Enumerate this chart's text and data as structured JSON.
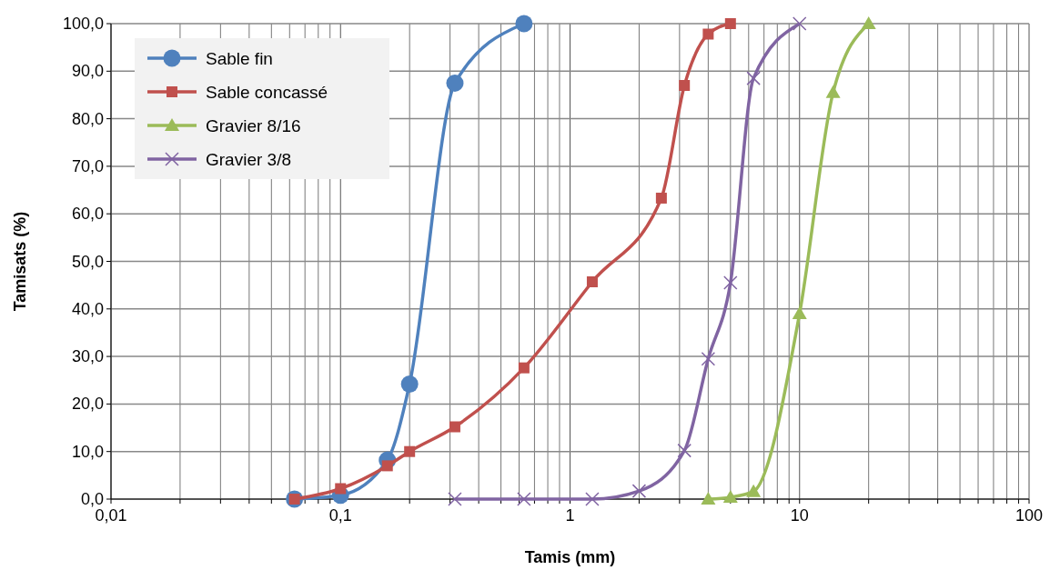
{
  "chart_data": {
    "type": "line",
    "xlabel": "Tamis (mm)",
    "ylabel": "Tamisats (%)",
    "log": "x",
    "grid": true,
    "legend": "top left",
    "line_style": "solid",
    "xlim": [
      0.01,
      100
    ],
    "ylim": [
      0,
      100
    ],
    "xticks": [
      {
        "value": 0.01,
        "label": "0,01"
      },
      {
        "value": 0.02,
        "label": null
      },
      {
        "value": 0.03,
        "label": null
      },
      {
        "value": 0.04,
        "label": null
      },
      {
        "value": 0.05,
        "label": null
      },
      {
        "value": 0.06,
        "label": null
      },
      {
        "value": 0.07,
        "label": null
      },
      {
        "value": 0.08,
        "label": null
      },
      {
        "value": 0.09,
        "label": null
      },
      {
        "value": 0.1,
        "label": "0,1"
      },
      {
        "value": 0.2,
        "label": null
      },
      {
        "value": 0.3,
        "label": null
      },
      {
        "value": 0.4,
        "label": null
      },
      {
        "value": 0.5,
        "label": null
      },
      {
        "value": 0.6,
        "label": null
      },
      {
        "value": 0.7,
        "label": null
      },
      {
        "value": 0.8,
        "label": null
      },
      {
        "value": 0.9,
        "label": null
      },
      {
        "value": 1,
        "label": "1"
      },
      {
        "value": 2,
        "label": null
      },
      {
        "value": 3,
        "label": null
      },
      {
        "value": 4,
        "label": null
      },
      {
        "value": 5,
        "label": null
      },
      {
        "value": 6,
        "label": null
      },
      {
        "value": 7,
        "label": null
      },
      {
        "value": 8,
        "label": null
      },
      {
        "value": 9,
        "label": null
      },
      {
        "value": 10,
        "label": "10"
      },
      {
        "value": 20,
        "label": null
      },
      {
        "value": 30,
        "label": null
      },
      {
        "value": 40,
        "label": null
      },
      {
        "value": 50,
        "label": null
      },
      {
        "value": 60,
        "label": null
      },
      {
        "value": 70,
        "label": null
      },
      {
        "value": 80,
        "label": null
      },
      {
        "value": 90,
        "label": null
      },
      {
        "value": 100,
        "label": "100"
      }
    ],
    "yticks": [
      {
        "value": 0,
        "label": "0,0"
      },
      {
        "value": 10,
        "label": "10,0"
      },
      {
        "value": 20,
        "label": "20,0"
      },
      {
        "value": 30,
        "label": "30,0"
      },
      {
        "value": 40,
        "label": "40,0"
      },
      {
        "value": 50,
        "label": "50,0"
      },
      {
        "value": 60,
        "label": "60,0"
      },
      {
        "value": 70,
        "label": "70,0"
      },
      {
        "value": 80,
        "label": "80,0"
      },
      {
        "value": 90,
        "label": "90,0"
      },
      {
        "value": 100,
        "label": "100,0"
      }
    ],
    "series": [
      {
        "name": "Sable fin",
        "color": "#4f81bd",
        "marker": "circle",
        "x": [
          0.063,
          0.1,
          0.16,
          0.2,
          0.315,
          0.63
        ],
        "values": [
          0,
          0.8,
          8.2,
          24.2,
          87.5,
          100
        ]
      },
      {
        "name": "Sable concassé",
        "color": "#c0504d",
        "marker": "square",
        "x": [
          0.063,
          0.1,
          0.16,
          0.2,
          0.315,
          0.63,
          1.25,
          2.5,
          3.15,
          4,
          5
        ],
        "values": [
          0,
          2.2,
          7,
          10,
          15.2,
          27.6,
          45.7,
          63.3,
          87,
          97.8,
          100
        ]
      },
      {
        "name": "Gravier 8/16",
        "color": "#9bbb59",
        "marker": "triangle",
        "x": [
          4,
          5,
          6.3,
          10,
          14,
          20
        ],
        "values": [
          0,
          0.4,
          1.6,
          39,
          85.5,
          100
        ]
      },
      {
        "name": "Gravier 3/8",
        "color": "#8064a2",
        "marker": "cross",
        "x": [
          0.315,
          0.63,
          1.25,
          2,
          3.15,
          4,
          5,
          6.3,
          10
        ],
        "values": [
          0,
          0,
          0,
          1.7,
          10.2,
          29.5,
          45.5,
          88.5,
          100
        ]
      }
    ]
  }
}
